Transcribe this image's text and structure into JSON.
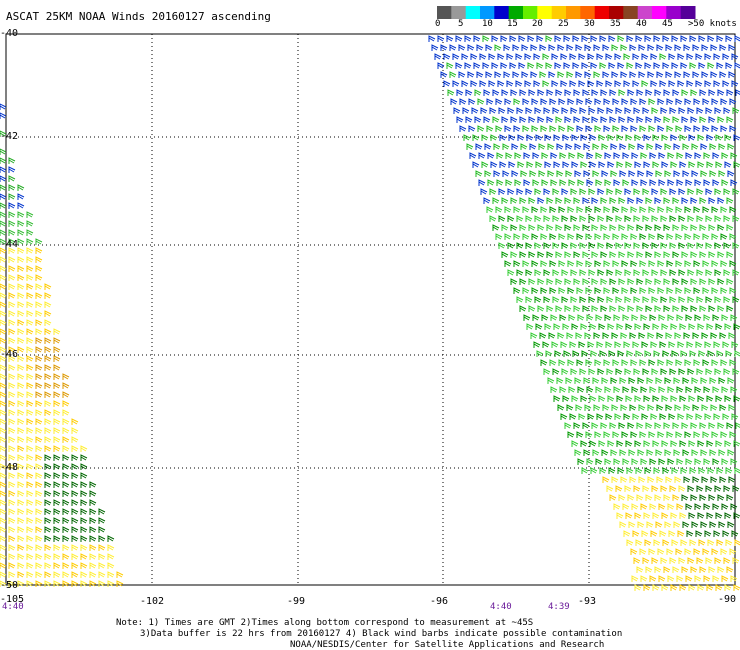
{
  "title": "ASCAT 25KM NOAA Winds 20160127 ascending",
  "colorbar": {
    "colors": [
      "#555555",
      "#999999",
      "#00ffff",
      "#0099ff",
      "#0000cc",
      "#00aa00",
      "#66ee00",
      "#ffff00",
      "#ffcc00",
      "#ff9900",
      "#ff6600",
      "#ee0000",
      "#aa0000",
      "#884422",
      "#cc44cc",
      "#ff00ff",
      "#9900cc",
      "#550099"
    ],
    "labels": [
      "0",
      "5",
      "10",
      "15",
      "20",
      "25",
      "30",
      "35",
      "40",
      "45",
      ">50 knots"
    ]
  },
  "axes": {
    "lat_labels": [
      "-40",
      "-42",
      "-44",
      "-46",
      "-48",
      "-50"
    ],
    "lon_labels": [
      "-105",
      "-102",
      "-99",
      "-96",
      "-93",
      "-90"
    ]
  },
  "pass_times": [
    "4:40",
    "4:40",
    "4:39"
  ],
  "notes": [
    "Note: 1) Times are GMT 2)Times along bottom correspond to measurement at ~45S",
    "3)Data buffer is 22 hrs from 20160127 4) Black wind barbs indicate possible contamination",
    "NOAA/NESDIS/Center for Satellite Applications and Research"
  ]
}
